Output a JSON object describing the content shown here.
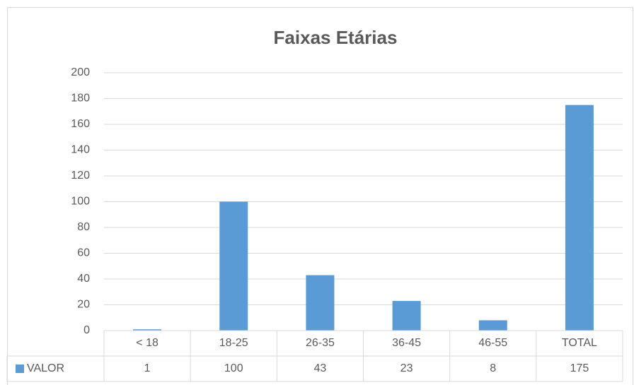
{
  "chart_data": {
    "type": "bar",
    "title": "Faixas Etárias",
    "categories": [
      "< 18",
      "18-25",
      "26-35",
      "36-45",
      "46-55",
      "TOTAL"
    ],
    "series": [
      {
        "name": "VALOR",
        "color": "#5b9bd5",
        "values": [
          1,
          100,
          43,
          23,
          8,
          175
        ]
      }
    ],
    "ylim": [
      0,
      200
    ],
    "yticks": [
      0,
      20,
      40,
      60,
      80,
      100,
      120,
      140,
      160,
      180,
      200
    ],
    "grid": true,
    "data_table": true
  }
}
